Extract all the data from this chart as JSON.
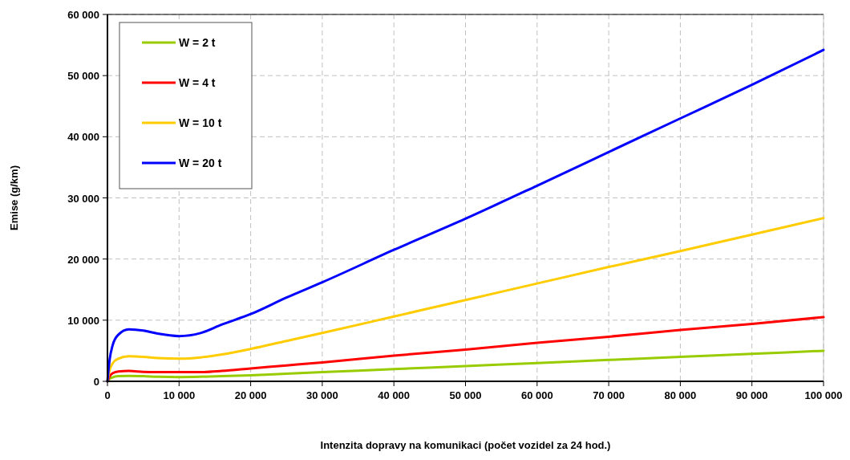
{
  "chart_data": {
    "type": "line",
    "xlabel": "Intenzita dopravy na komunikaci (počet vozidel za 24 hod.)",
    "ylabel": "Emise (g/km)",
    "xlim": [
      0,
      100000
    ],
    "ylim": [
      0,
      60000
    ],
    "xticks": [
      {
        "value": 0,
        "label": "0"
      },
      {
        "value": 10000,
        "label": "10 000"
      },
      {
        "value": 20000,
        "label": "20 000"
      },
      {
        "value": 30000,
        "label": "30 000"
      },
      {
        "value": 40000,
        "label": "40 000"
      },
      {
        "value": 50000,
        "label": "50 000"
      },
      {
        "value": 60000,
        "label": "60 000"
      },
      {
        "value": 70000,
        "label": "70 000"
      },
      {
        "value": 80000,
        "label": "80 000"
      },
      {
        "value": 90000,
        "label": "90 000"
      },
      {
        "value": 100000,
        "label": "100 000"
      }
    ],
    "yticks": [
      {
        "value": 0,
        "label": "0"
      },
      {
        "value": 10000,
        "label": "10 000"
      },
      {
        "value": 20000,
        "label": "20 000"
      },
      {
        "value": 30000,
        "label": "30 000"
      },
      {
        "value": 40000,
        "label": "40 000"
      },
      {
        "value": 50000,
        "label": "50 000"
      },
      {
        "value": 60000,
        "label": "60 000"
      }
    ],
    "grid": true,
    "legend": "top left",
    "marker": "none",
    "line_style": "solid",
    "x": [
      0,
      300,
      700,
      1500,
      3000,
      5000,
      7000,
      10000,
      13000,
      16000,
      20000,
      25000,
      30000,
      40000,
      50000,
      60000,
      70000,
      80000,
      90000,
      100000
    ],
    "series": [
      {
        "name": "W = 2 t",
        "color": "#99cc00",
        "values": [
          0,
          400,
          650,
          850,
          900,
          850,
          750,
          700,
          750,
          850,
          1000,
          1250,
          1500,
          2000,
          2500,
          3000,
          3500,
          4000,
          4500,
          5000
        ]
      },
      {
        "name": "W = 4 t",
        "color": "#ff0000",
        "values": [
          0,
          800,
          1300,
          1600,
          1700,
          1550,
          1500,
          1500,
          1500,
          1700,
          2100,
          2600,
          3100,
          4200,
          5200,
          6300,
          7300,
          8400,
          9400,
          10500
        ]
      },
      {
        "name": "W = 10 t",
        "color": "#ffcc00",
        "values": [
          0,
          1800,
          2900,
          3700,
          4100,
          4000,
          3800,
          3700,
          3900,
          4400,
          5300,
          6600,
          7900,
          10600,
          13300,
          16000,
          18700,
          21300,
          24000,
          26700
        ]
      },
      {
        "name": "W = 20 t",
        "color": "#0000ff",
        "values": [
          0,
          3500,
          5800,
          7600,
          8500,
          8300,
          7800,
          7400,
          7900,
          9300,
          11000,
          13700,
          16200,
          21500,
          26600,
          32000,
          37500,
          43000,
          48500,
          54200
        ]
      }
    ]
  }
}
